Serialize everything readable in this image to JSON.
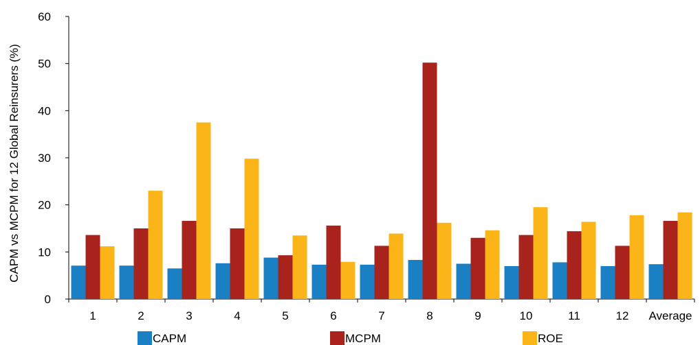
{
  "chart_data": {
    "type": "bar",
    "title": "",
    "xlabel": "",
    "ylabel": "CAPM vs MCPM for 12 Global Reinsurers (%)",
    "ylim": [
      0,
      60
    ],
    "yticks": [
      0,
      10,
      20,
      30,
      40,
      50,
      60
    ],
    "grid": false,
    "legend_position": "bottom",
    "categories": [
      "1",
      "2",
      "3",
      "4",
      "5",
      "6",
      "7",
      "8",
      "9",
      "10",
      "11",
      "12",
      "Average"
    ],
    "series": [
      {
        "name": "CAPM",
        "color": "#1b7fc4",
        "values": [
          7.1,
          7.1,
          6.5,
          7.6,
          8.8,
          7.3,
          7.3,
          8.3,
          7.5,
          7.0,
          7.8,
          7.0,
          7.4
        ]
      },
      {
        "name": "MCPM",
        "color": "#a8231c",
        "values": [
          13.6,
          15.0,
          16.6,
          15.0,
          9.3,
          15.6,
          11.3,
          50.2,
          13.0,
          13.6,
          14.4,
          11.3,
          16.6
        ]
      },
      {
        "name": "ROE",
        "color": "#fbb519",
        "values": [
          11.2,
          23.0,
          37.5,
          29.8,
          13.5,
          7.9,
          13.9,
          16.2,
          14.6,
          19.5,
          16.4,
          17.8,
          18.4
        ]
      }
    ]
  }
}
